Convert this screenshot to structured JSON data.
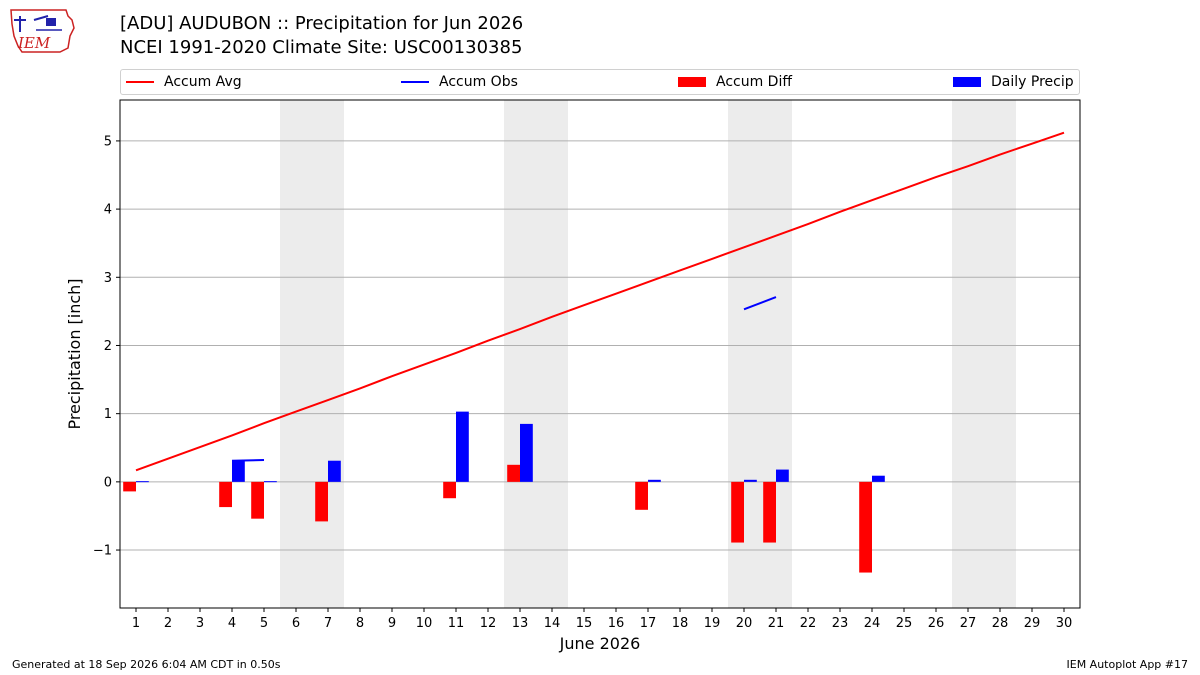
{
  "header": {
    "logo_text": "IEM",
    "title_line1": "[ADU] AUDUBON :: Precipitation for Jun 2026",
    "title_line2": "NCEI 1991-2020 Climate Site: USC00130385"
  },
  "footer": {
    "generated": "Generated at 18 Sep 2026 6:04 AM CDT in 0.50s",
    "app": "IEM Autoplot App #17"
  },
  "colors": {
    "accum_avg": "#ff0000",
    "accum_obs": "#0000ff",
    "accum_diff": "#ff0000",
    "daily_precip": "#0000ff",
    "weekend_band": "#ececec",
    "grid": "#b0b0b0"
  },
  "chart_data": {
    "type": "bar",
    "xlabel": "June 2026",
    "ylabel": "Precipitation [inch]",
    "ylim": [
      -1.85,
      5.6
    ],
    "xlim": [
      0.5,
      30.5
    ],
    "yticks": [
      -1,
      0,
      1,
      2,
      3,
      4,
      5
    ],
    "ytick_labels": [
      "−1",
      "0",
      "1",
      "2",
      "3",
      "4",
      "5"
    ],
    "days": [
      1,
      2,
      3,
      4,
      5,
      6,
      7,
      8,
      9,
      10,
      11,
      12,
      13,
      14,
      15,
      16,
      17,
      18,
      19,
      20,
      21,
      22,
      23,
      24,
      25,
      26,
      27,
      28,
      29,
      30
    ],
    "grid": "horizontal",
    "legend_position": "top",
    "weekend_bands": [
      [
        6,
        7
      ],
      [
        13,
        14
      ],
      [
        20,
        21
      ],
      [
        27,
        28
      ]
    ],
    "series": [
      {
        "name": "Accum Avg",
        "kind": "line",
        "x": [
          1,
          2,
          3,
          4,
          5,
          6,
          7,
          8,
          9,
          10,
          11,
          12,
          13,
          14,
          15,
          16,
          17,
          18,
          19,
          20,
          21,
          22,
          23,
          24,
          25,
          26,
          27,
          28,
          29,
          30
        ],
        "values": [
          0.17,
          0.34,
          0.51,
          0.68,
          0.86,
          1.03,
          1.2,
          1.37,
          1.55,
          1.72,
          1.89,
          2.07,
          2.24,
          2.42,
          2.59,
          2.76,
          2.93,
          3.1,
          3.27,
          3.44,
          3.61,
          3.78,
          3.96,
          4.13,
          4.3,
          4.47,
          4.63,
          4.8,
          4.96,
          5.12
        ]
      },
      {
        "name": "Accum Obs",
        "kind": "line",
        "segments": [
          {
            "x": [
              4,
              5
            ],
            "values": [
              0.31,
              0.32
            ]
          },
          {
            "x": [
              20,
              21
            ],
            "values": [
              2.53,
              2.71
            ]
          }
        ]
      },
      {
        "name": "Accum Diff",
        "kind": "bar",
        "x": [
          1,
          4,
          5,
          7,
          11,
          13,
          17,
          20,
          21,
          24
        ],
        "values": [
          -0.14,
          -0.37,
          -0.54,
          -0.58,
          -0.24,
          0.25,
          -0.41,
          -0.89,
          -0.89,
          -1.33
        ]
      },
      {
        "name": "Daily Precip",
        "kind": "bar",
        "x": [
          1,
          4,
          5,
          7,
          11,
          13,
          17,
          20,
          21,
          24
        ],
        "values": [
          0.01,
          0.31,
          0.01,
          0.31,
          1.03,
          0.85,
          0.03,
          0.03,
          0.18,
          0.09
        ]
      }
    ]
  }
}
